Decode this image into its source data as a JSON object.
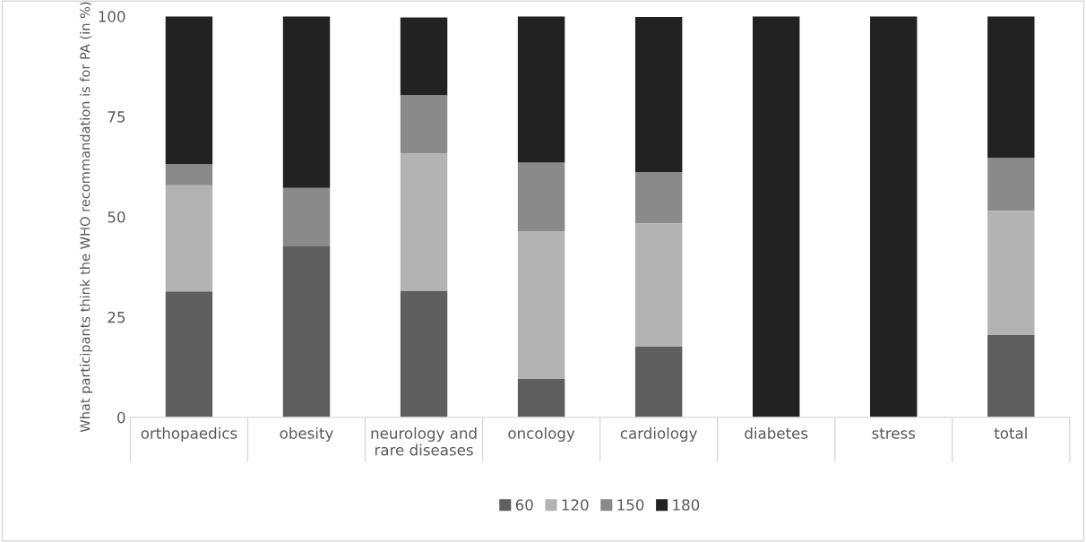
{
  "chart_data": {
    "type": "bar",
    "stacked": true,
    "ylabel": "What participants think the WHO recommandation is for PA (in %)",
    "categories": [
      "orthopaedics",
      "obesity",
      "neurology and\nrare diseases",
      "oncology",
      "cardiology",
      "diabetes",
      "stress",
      "total"
    ],
    "series": [
      {
        "name": "60",
        "color": "#5f5f5f",
        "values": [
          31.4,
          42.8,
          31.6,
          9.7,
          17.7,
          0,
          0,
          20.5
        ]
      },
      {
        "name": "120",
        "color": "#b3b3b3",
        "values": [
          26.5,
          0,
          34.2,
          36.7,
          30.7,
          0,
          0,
          31.0
        ]
      },
      {
        "name": "150",
        "color": "#8a8a8a",
        "values": [
          5.2,
          14.4,
          14.5,
          17.1,
          12.7,
          0,
          0,
          13.2
        ]
      },
      {
        "name": "180",
        "color": "#222222",
        "values": [
          36.9,
          42.8,
          19.4,
          36.5,
          38.7,
          100,
          100,
          35.3
        ]
      }
    ],
    "ylim": [
      0,
      100
    ],
    "yticks": [
      0,
      25,
      50,
      75,
      100
    ],
    "grid": false,
    "legend": "bottom"
  }
}
